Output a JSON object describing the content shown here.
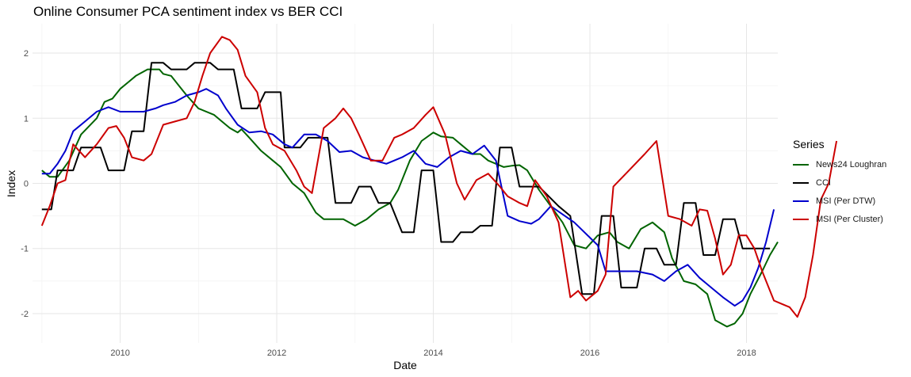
{
  "chart_data": {
    "type": "line",
    "title": "Online Consumer PCA sentiment index vs BER CCI",
    "xlabel": "Date",
    "ylabel": "Index",
    "xlim": [
      2008.88,
      2018.4
    ],
    "ylim": [
      -2.45,
      2.45
    ],
    "x_ticks": [
      2010,
      2012,
      2014,
      2016,
      2018
    ],
    "y_ticks": [
      -2,
      -1,
      0,
      1,
      2
    ],
    "grid": true,
    "legend_title": "Series",
    "legend_position": "right",
    "series": [
      {
        "name": "News24 Loughran",
        "color": "#006400",
        "points": [
          [
            2009.0,
            0.2
          ],
          [
            2009.1,
            0.1
          ],
          [
            2009.2,
            0.1
          ],
          [
            2009.35,
            0.35
          ],
          [
            2009.5,
            0.75
          ],
          [
            2009.7,
            1.0
          ],
          [
            2009.8,
            1.25
          ],
          [
            2009.9,
            1.3
          ],
          [
            2010.0,
            1.45
          ],
          [
            2010.1,
            1.55
          ],
          [
            2010.2,
            1.65
          ],
          [
            2010.35,
            1.75
          ],
          [
            2010.5,
            1.75
          ],
          [
            2010.55,
            1.68
          ],
          [
            2010.65,
            1.65
          ],
          [
            2010.75,
            1.5
          ],
          [
            2010.85,
            1.35
          ],
          [
            2011.0,
            1.15
          ],
          [
            2011.2,
            1.05
          ],
          [
            2011.3,
            0.95
          ],
          [
            2011.4,
            0.85
          ],
          [
            2011.5,
            0.78
          ],
          [
            2011.55,
            0.83
          ],
          [
            2011.65,
            0.7
          ],
          [
            2011.8,
            0.5
          ],
          [
            2011.95,
            0.35
          ],
          [
            2012.05,
            0.25
          ],
          [
            2012.2,
            0.0
          ],
          [
            2012.35,
            -0.15
          ],
          [
            2012.5,
            -0.45
          ],
          [
            2012.6,
            -0.55
          ],
          [
            2012.75,
            -0.55
          ],
          [
            2012.85,
            -0.55
          ],
          [
            2013.0,
            -0.65
          ],
          [
            2013.15,
            -0.55
          ],
          [
            2013.3,
            -0.4
          ],
          [
            2013.45,
            -0.3
          ],
          [
            2013.55,
            -0.1
          ],
          [
            2013.7,
            0.35
          ],
          [
            2013.85,
            0.65
          ],
          [
            2014.0,
            0.78
          ],
          [
            2014.1,
            0.72
          ],
          [
            2014.25,
            0.7
          ],
          [
            2014.35,
            0.6
          ],
          [
            2014.5,
            0.45
          ],
          [
            2014.6,
            0.45
          ],
          [
            2014.7,
            0.35
          ],
          [
            2014.8,
            0.3
          ],
          [
            2014.9,
            0.25
          ],
          [
            2015.0,
            0.27
          ],
          [
            2015.1,
            0.28
          ],
          [
            2015.2,
            0.2
          ],
          [
            2015.35,
            -0.1
          ],
          [
            2015.5,
            -0.35
          ],
          [
            2015.65,
            -0.6
          ],
          [
            2015.8,
            -0.95
          ],
          [
            2015.95,
            -1.0
          ],
          [
            2016.1,
            -0.8
          ],
          [
            2016.25,
            -0.75
          ],
          [
            2016.35,
            -0.9
          ],
          [
            2016.5,
            -1.0
          ],
          [
            2016.65,
            -0.7
          ],
          [
            2016.8,
            -0.6
          ],
          [
            2016.95,
            -0.75
          ],
          [
            2017.05,
            -1.15
          ],
          [
            2017.2,
            -1.5
          ],
          [
            2017.35,
            -1.55
          ],
          [
            2017.5,
            -1.7
          ],
          [
            2017.6,
            -2.1
          ],
          [
            2017.75,
            -2.2
          ],
          [
            2017.85,
            -2.15
          ],
          [
            2017.95,
            -2.0
          ],
          [
            2018.05,
            -1.7
          ],
          [
            2018.2,
            -1.35
          ],
          [
            2018.3,
            -1.1
          ],
          [
            2018.4,
            -0.9
          ]
        ]
      },
      {
        "name": "CCI",
        "color": "#000000",
        "points": [
          [
            2009.0,
            -0.4
          ],
          [
            2009.12,
            -0.4
          ],
          [
            2009.2,
            0.2
          ],
          [
            2009.4,
            0.2
          ],
          [
            2009.5,
            0.55
          ],
          [
            2009.75,
            0.55
          ],
          [
            2009.85,
            0.2
          ],
          [
            2010.05,
            0.2
          ],
          [
            2010.15,
            0.8
          ],
          [
            2010.3,
            0.8
          ],
          [
            2010.4,
            1.85
          ],
          [
            2010.55,
            1.85
          ],
          [
            2010.65,
            1.75
          ],
          [
            2010.85,
            1.75
          ],
          [
            2010.95,
            1.85
          ],
          [
            2011.15,
            1.85
          ],
          [
            2011.25,
            1.75
          ],
          [
            2011.45,
            1.75
          ],
          [
            2011.55,
            1.15
          ],
          [
            2011.75,
            1.15
          ],
          [
            2011.85,
            1.4
          ],
          [
            2012.05,
            1.4
          ],
          [
            2012.1,
            0.55
          ],
          [
            2012.3,
            0.55
          ],
          [
            2012.4,
            0.7
          ],
          [
            2012.65,
            0.7
          ],
          [
            2012.75,
            -0.3
          ],
          [
            2012.95,
            -0.3
          ],
          [
            2013.05,
            -0.05
          ],
          [
            2013.2,
            -0.05
          ],
          [
            2013.3,
            -0.3
          ],
          [
            2013.45,
            -0.3
          ],
          [
            2013.6,
            -0.75
          ],
          [
            2013.75,
            -0.75
          ],
          [
            2013.85,
            0.2
          ],
          [
            2014.0,
            0.2
          ],
          [
            2014.1,
            -0.9
          ],
          [
            2014.25,
            -0.9
          ],
          [
            2014.35,
            -0.75
          ],
          [
            2014.5,
            -0.75
          ],
          [
            2014.6,
            -0.65
          ],
          [
            2014.75,
            -0.65
          ],
          [
            2014.85,
            0.55
          ],
          [
            2015.0,
            0.55
          ],
          [
            2015.1,
            -0.05
          ],
          [
            2015.25,
            -0.05
          ],
          [
            2015.35,
            -0.05
          ],
          [
            2015.6,
            -0.35
          ],
          [
            2015.75,
            -0.5
          ],
          [
            2015.9,
            -1.7
          ],
          [
            2016.05,
            -1.7
          ],
          [
            2016.15,
            -0.5
          ],
          [
            2016.3,
            -0.5
          ],
          [
            2016.4,
            -1.6
          ],
          [
            2016.6,
            -1.6
          ],
          [
            2016.7,
            -1.0
          ],
          [
            2016.85,
            -1.0
          ],
          [
            2016.95,
            -1.25
          ],
          [
            2017.1,
            -1.25
          ],
          [
            2017.2,
            -0.3
          ],
          [
            2017.35,
            -0.3
          ],
          [
            2017.45,
            -1.1
          ],
          [
            2017.6,
            -1.1
          ],
          [
            2017.7,
            -0.55
          ],
          [
            2017.85,
            -0.55
          ],
          [
            2017.95,
            -1.0
          ],
          [
            2018.3,
            -1.0
          ]
        ]
      },
      {
        "name": "MSI (Per DTW)",
        "color": "#0000cd",
        "points": [
          [
            2009.0,
            0.15
          ],
          [
            2009.1,
            0.15
          ],
          [
            2009.2,
            0.3
          ],
          [
            2009.3,
            0.5
          ],
          [
            2009.4,
            0.8
          ],
          [
            2009.55,
            0.95
          ],
          [
            2009.7,
            1.1
          ],
          [
            2009.85,
            1.17
          ],
          [
            2010.0,
            1.1
          ],
          [
            2010.15,
            1.1
          ],
          [
            2010.3,
            1.1
          ],
          [
            2010.45,
            1.15
          ],
          [
            2010.55,
            1.2
          ],
          [
            2010.7,
            1.25
          ],
          [
            2010.85,
            1.35
          ],
          [
            2011.0,
            1.4
          ],
          [
            2011.1,
            1.45
          ],
          [
            2011.25,
            1.35
          ],
          [
            2011.35,
            1.15
          ],
          [
            2011.5,
            0.9
          ],
          [
            2011.65,
            0.78
          ],
          [
            2011.8,
            0.8
          ],
          [
            2011.95,
            0.75
          ],
          [
            2012.1,
            0.6
          ],
          [
            2012.2,
            0.55
          ],
          [
            2012.35,
            0.75
          ],
          [
            2012.5,
            0.75
          ],
          [
            2012.65,
            0.65
          ],
          [
            2012.8,
            0.48
          ],
          [
            2012.95,
            0.5
          ],
          [
            2013.1,
            0.4
          ],
          [
            2013.25,
            0.35
          ],
          [
            2013.4,
            0.3
          ],
          [
            2013.6,
            0.4
          ],
          [
            2013.75,
            0.5
          ],
          [
            2013.9,
            0.3
          ],
          [
            2014.05,
            0.25
          ],
          [
            2014.2,
            0.4
          ],
          [
            2014.35,
            0.5
          ],
          [
            2014.5,
            0.45
          ],
          [
            2014.65,
            0.58
          ],
          [
            2014.8,
            0.35
          ],
          [
            2014.95,
            -0.5
          ],
          [
            2015.1,
            -0.58
          ],
          [
            2015.25,
            -0.62
          ],
          [
            2015.35,
            -0.55
          ],
          [
            2015.5,
            -0.35
          ],
          [
            2015.8,
            -0.6
          ],
          [
            2016.1,
            -0.95
          ],
          [
            2016.2,
            -1.35
          ],
          [
            2016.4,
            -1.35
          ],
          [
            2016.6,
            -1.35
          ],
          [
            2016.8,
            -1.4
          ],
          [
            2016.95,
            -1.5
          ],
          [
            2017.1,
            -1.35
          ],
          [
            2017.25,
            -1.25
          ],
          [
            2017.4,
            -1.45
          ],
          [
            2017.55,
            -1.6
          ],
          [
            2017.7,
            -1.75
          ],
          [
            2017.85,
            -1.88
          ],
          [
            2017.95,
            -1.8
          ],
          [
            2018.05,
            -1.6
          ],
          [
            2018.15,
            -1.3
          ],
          [
            2018.25,
            -0.9
          ],
          [
            2018.35,
            -0.4
          ]
        ]
      },
      {
        "name": "MSI (Per Cluster)",
        "color": "#cc0000",
        "points": [
          [
            2009.0,
            -0.65
          ],
          [
            2009.1,
            -0.35
          ],
          [
            2009.2,
            0.0
          ],
          [
            2009.3,
            0.05
          ],
          [
            2009.4,
            0.6
          ],
          [
            2009.55,
            0.4
          ],
          [
            2009.7,
            0.6
          ],
          [
            2009.85,
            0.85
          ],
          [
            2009.95,
            0.88
          ],
          [
            2010.05,
            0.7
          ],
          [
            2010.15,
            0.4
          ],
          [
            2010.3,
            0.35
          ],
          [
            2010.4,
            0.45
          ],
          [
            2010.55,
            0.9
          ],
          [
            2010.7,
            0.95
          ],
          [
            2010.85,
            1.0
          ],
          [
            2010.95,
            1.25
          ],
          [
            2011.05,
            1.65
          ],
          [
            2011.15,
            2.0
          ],
          [
            2011.3,
            2.25
          ],
          [
            2011.4,
            2.2
          ],
          [
            2011.5,
            2.05
          ],
          [
            2011.6,
            1.65
          ],
          [
            2011.75,
            1.4
          ],
          [
            2011.85,
            0.85
          ],
          [
            2011.95,
            0.6
          ],
          [
            2012.1,
            0.5
          ],
          [
            2012.25,
            0.2
          ],
          [
            2012.35,
            -0.05
          ],
          [
            2012.45,
            -0.15
          ],
          [
            2012.6,
            0.85
          ],
          [
            2012.75,
            1.0
          ],
          [
            2012.85,
            1.15
          ],
          [
            2012.95,
            1.0
          ],
          [
            2013.05,
            0.75
          ],
          [
            2013.2,
            0.35
          ],
          [
            2013.35,
            0.35
          ],
          [
            2013.5,
            0.7
          ],
          [
            2013.6,
            0.75
          ],
          [
            2013.75,
            0.85
          ],
          [
            2013.9,
            1.05
          ],
          [
            2014.0,
            1.17
          ],
          [
            2014.15,
            0.75
          ],
          [
            2014.3,
            0.0
          ],
          [
            2014.4,
            -0.25
          ],
          [
            2014.55,
            0.05
          ],
          [
            2014.7,
            0.15
          ],
          [
            2014.85,
            -0.05
          ],
          [
            2014.95,
            -0.2
          ],
          [
            2015.1,
            -0.3
          ],
          [
            2015.2,
            -0.35
          ],
          [
            2015.3,
            0.05
          ],
          [
            2015.45,
            -0.2
          ],
          [
            2015.6,
            -0.6
          ],
          [
            2015.75,
            -1.75
          ],
          [
            2015.85,
            -1.65
          ],
          [
            2015.95,
            -1.8
          ],
          [
            2016.1,
            -1.65
          ],
          [
            2016.2,
            -1.4
          ],
          [
            2016.3,
            -0.05
          ],
          [
            2016.5,
            0.2
          ],
          [
            2016.7,
            0.45
          ],
          [
            2016.85,
            0.65
          ],
          [
            2017.0,
            -0.5
          ],
          [
            2017.15,
            -0.55
          ],
          [
            2017.3,
            -0.65
          ],
          [
            2017.4,
            -0.4
          ],
          [
            2017.5,
            -0.42
          ],
          [
            2017.6,
            -0.85
          ],
          [
            2017.7,
            -1.4
          ],
          [
            2017.8,
            -1.25
          ],
          [
            2017.9,
            -0.8
          ],
          [
            2018.0,
            -0.8
          ],
          [
            2018.1,
            -1.0
          ],
          [
            2018.2,
            -1.35
          ],
          [
            2018.35,
            -1.8
          ],
          [
            2018.45,
            -1.85
          ],
          [
            2018.55,
            -1.9
          ],
          [
            2018.65,
            -2.05
          ],
          [
            2018.75,
            -1.75
          ],
          [
            2018.85,
            -1.1
          ],
          [
            2018.95,
            -0.25
          ],
          [
            2019.05,
            0.0
          ],
          [
            2019.15,
            0.65
          ]
        ]
      }
    ]
  }
}
